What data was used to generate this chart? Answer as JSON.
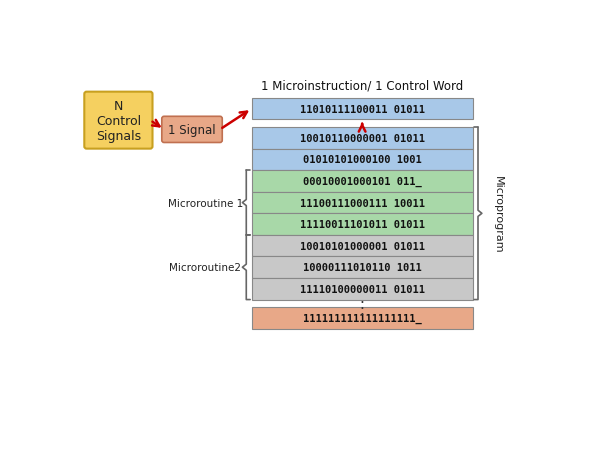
{
  "title_top": "1 Microinstruction/ 1 Control Word",
  "n_control_label": "N\nControl\nSignals",
  "signal_label": "1 Signal",
  "microprogram_label": "Microprogram",
  "microroutine1_label": "Microroutine 1",
  "microroutine2_label": "Microroutine2",
  "top_row_text": "11010111100011 01011",
  "row_labels": [
    "10010110000001 01011",
    "01010101000100 1001",
    "00010001000101 011_",
    "11100111000111 10011",
    "11110011101011 01011",
    "10010101000001 01011",
    "10000111010110 1011",
    "11110100000011 01011"
  ],
  "bottom_row_text": "111111111111111111_",
  "color_top_row": "#a8c8e8",
  "color_blue": "#a8c8e8",
  "color_green": "#a8d8a8",
  "color_gray": "#c8c8c8",
  "color_bottom": "#e8a888",
  "color_n_control_fill": "#f5d060",
  "color_n_control_edge": "#c8a020",
  "color_signal_fill": "#e8a888",
  "color_signal_edge": "#c07050",
  "arrow_color": "#cc0000",
  "background_color": "#ffffff",
  "row_colors": [
    "#a8c8e8",
    "#a8c8e8",
    "#a8d8a8",
    "#a8d8a8",
    "#a8d8a8",
    "#c8c8c8",
    "#c8c8c8",
    "#c8c8c8"
  ]
}
